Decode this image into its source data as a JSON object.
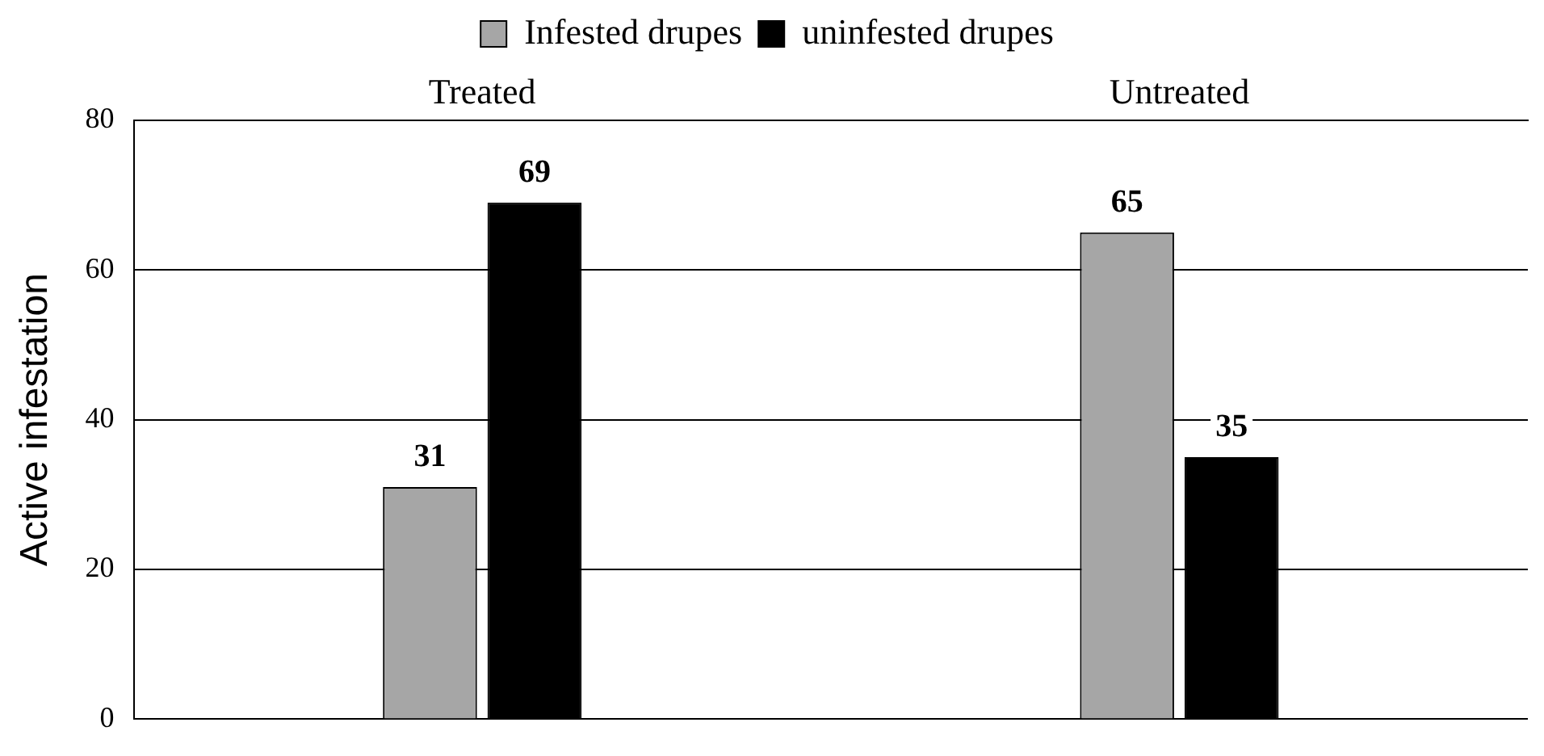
{
  "chart_data": {
    "type": "bar",
    "ylabel": "Active infestation",
    "categories": [
      "Treated",
      "Untreated"
    ],
    "series": [
      {
        "name": "Infested drupes",
        "color": "#a6a6a6",
        "values": [
          31,
          65
        ]
      },
      {
        "name": "uninfested drupes",
        "color": "#000000",
        "values": [
          69,
          35
        ]
      }
    ],
    "ylim": [
      0,
      80
    ],
    "yticks": [
      0,
      20,
      40,
      60,
      80
    ],
    "grid": "y",
    "legend": "top",
    "data_labels": true
  }
}
